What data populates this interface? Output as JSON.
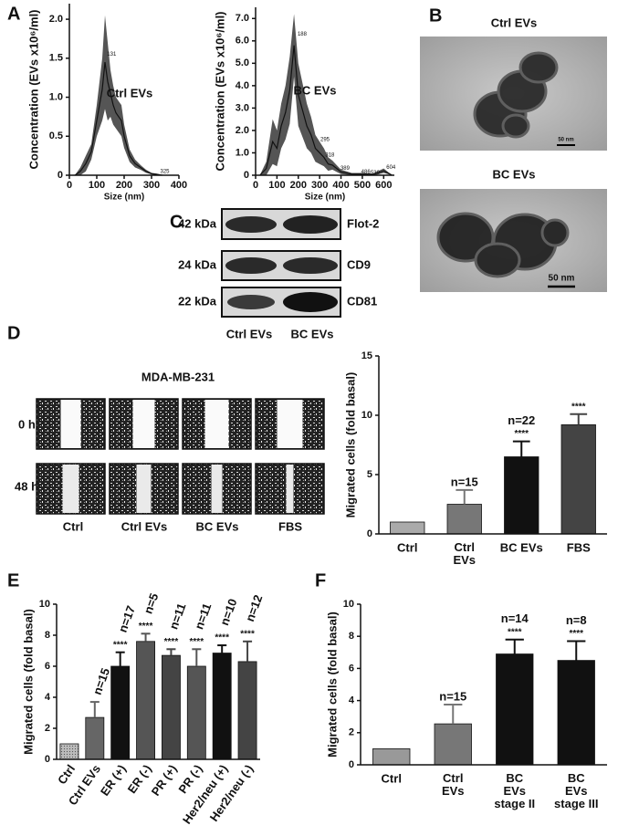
{
  "figure": {
    "panel_labels": [
      "A",
      "B",
      "C",
      "D",
      "E",
      "F"
    ],
    "tem": {
      "titles": [
        "Ctrl EVs",
        "BC EVs"
      ],
      "scale_bars": [
        "50 nm",
        "50 nm"
      ]
    },
    "blot": {
      "sizes": [
        "42 kDa",
        "24 kDa",
        "22 kDa"
      ],
      "markers": [
        "Flot-2",
        "CD9",
        "CD81"
      ],
      "lanes": [
        "Ctrl EVs",
        "BC EVs"
      ]
    },
    "wound": {
      "title": "MDA-MB-231",
      "times": [
        "0 h",
        "48 h"
      ],
      "conditions": [
        "Ctrl",
        "Ctrl EVs",
        "BC EVs",
        "FBS"
      ]
    }
  },
  "chart_data": [
    {
      "type": "line",
      "label": "Ctrl EVs",
      "xlabel": "Size (nm)",
      "ylabel": "Concentration (EVs x10⁶/ml)",
      "x": [
        20,
        40,
        60,
        80,
        100,
        110,
        120,
        130,
        140,
        150,
        160,
        170,
        180,
        190,
        200,
        220,
        240,
        260,
        280,
        300,
        320,
        340
      ],
      "series": [
        {
          "color": "#111111",
          "band_color": "#555555",
          "values": [
            0,
            0.05,
            0.15,
            0.3,
            0.7,
            0.9,
            1.1,
            1.45,
            1.2,
            1.05,
            0.9,
            0.8,
            0.75,
            0.7,
            0.5,
            0.25,
            0.15,
            0.1,
            0.05,
            0.02,
            0.01,
            0
          ],
          "errors": [
            0,
            0.05,
            0.1,
            0.1,
            0.2,
            0.3,
            0.4,
            0.6,
            0.5,
            0.3,
            0.25,
            0.2,
            0.2,
            0.2,
            0.15,
            0.08,
            0.05,
            0.03,
            0.02,
            0.01,
            0.01,
            0
          ]
        }
      ],
      "annotations": [
        {
          "x": 131,
          "y": 1.55,
          "text": "131"
        },
        {
          "x": 325,
          "y": 0.05,
          "text": "325"
        }
      ],
      "xlim": [
        0,
        400
      ],
      "xticks": [
        0,
        100,
        200,
        300,
        400
      ],
      "ylim": [
        0,
        2.2
      ],
      "yticks": [
        0,
        0.5,
        {
          "value": 1,
          "label": "1.0"
        },
        1.5,
        {
          "value": 2,
          "label": "2.0"
        }
      ]
    },
    {
      "type": "line",
      "label": "BC EVs",
      "xlabel": "Size (nm)",
      "ylabel": "Concentration (EVs x10⁶/ml)",
      "x": [
        20,
        50,
        80,
        100,
        120,
        140,
        160,
        180,
        200,
        220,
        240,
        260,
        280,
        300,
        320,
        340,
        360,
        380,
        400,
        450,
        500,
        550,
        600,
        620,
        640
      ],
      "series": [
        {
          "color": "#111111",
          "band_color": "#555555",
          "values": [
            0,
            0.3,
            1.5,
            1.2,
            2.2,
            2.8,
            3.8,
            5.8,
            3.6,
            2.9,
            2.2,
            1.8,
            1.2,
            1.0,
            0.8,
            0.5,
            0.45,
            0.3,
            0.15,
            0.05,
            0.05,
            0.03,
            0.2,
            0.1,
            0
          ],
          "errors": [
            0,
            0.3,
            1.0,
            0.8,
            1.0,
            1.2,
            1.5,
            1.4,
            1.4,
            1.2,
            1.0,
            0.8,
            0.6,
            0.5,
            0.4,
            0.3,
            0.2,
            0.15,
            0.1,
            0.05,
            0.05,
            0.05,
            0.1,
            0.05,
            0
          ]
        }
      ],
      "annotations": [
        {
          "x": 188,
          "y": 6.3,
          "text": "188"
        },
        {
          "x": 295,
          "y": 1.6,
          "text": "295"
        },
        {
          "x": 318,
          "y": 0.9,
          "text": "318"
        },
        {
          "x": 389,
          "y": 0.3,
          "text": "389"
        },
        {
          "x": 486,
          "y": 0.15,
          "text": "486"
        },
        {
          "x": 530,
          "y": 0.1,
          "text": "530"
        },
        {
          "x": 604,
          "y": 0.35,
          "text": "604"
        }
      ],
      "xlim": [
        0,
        650
      ],
      "xticks": [
        0,
        100,
        200,
        300,
        400,
        500,
        600
      ],
      "ylim": [
        0,
        7.5
      ],
      "yticks": [
        0,
        {
          "value": 1,
          "label": "1.0"
        },
        {
          "value": 2,
          "label": "2.0"
        },
        {
          "value": 3,
          "label": "3.0"
        },
        {
          "value": 4,
          "label": "4.0"
        },
        {
          "value": 5,
          "label": "5.0"
        },
        {
          "value": 6,
          "label": "6.0"
        },
        {
          "value": 7,
          "label": "7.0"
        }
      ]
    },
    {
      "type": "bar",
      "ylabel": "Migrated cells (fold basal)",
      "categories": [
        "Ctrl",
        "Ctrl\nEVs",
        "BC EVs",
        "FBS"
      ],
      "values": [
        1,
        2.5,
        6.5,
        9.2
      ],
      "errors": [
        0,
        1.2,
        1.3,
        0.9
      ],
      "colors": [
        "#aaaaaa",
        "#777777",
        "#111111",
        "#444444"
      ],
      "n_labels": [
        null,
        "n=15",
        "n=22",
        null
      ],
      "significance": [
        null,
        null,
        "****",
        "****"
      ],
      "ylim": [
        0,
        15
      ],
      "yticks": [
        0,
        5,
        10,
        15
      ]
    },
    {
      "type": "bar",
      "ylabel": "Migrated cells (fold basal)",
      "categories": [
        "Ctrl",
        "Ctrl EVs",
        "ER (+)",
        "ER (-)",
        "PR (+)",
        "PR (-)",
        "Her2/neu (+)",
        "Her2/neu (-)"
      ],
      "values": [
        1,
        2.7,
        6.0,
        7.6,
        6.7,
        6.0,
        6.85,
        6.3
      ],
      "errors": [
        0,
        1.0,
        0.9,
        0.5,
        0.4,
        1.1,
        0.5,
        1.3
      ],
      "colors": [
        "#b0b0b0",
        "#666666",
        "#111111",
        "#555555",
        "#444444",
        "#555555",
        "#111111",
        "#444444"
      ],
      "n_labels": [
        null,
        "n=15",
        "n=17",
        "n=5",
        "n=11",
        "n=11",
        "n=10",
        "n=12"
      ],
      "significance": [
        null,
        null,
        "****",
        "****",
        "****",
        "****",
        "****",
        "****"
      ],
      "ylim": [
        0,
        10
      ],
      "yticks": [
        0,
        2,
        4,
        6,
        8,
        10
      ]
    },
    {
      "type": "bar",
      "ylabel": "Migrated cells (fold basal)",
      "categories": [
        "Ctrl",
        "Ctrl\nEVs",
        "BC\nEVs\nstage II",
        "BC\nEVs\nstage III"
      ],
      "values": [
        1,
        2.55,
        6.9,
        6.5
      ],
      "errors": [
        0,
        1.2,
        0.9,
        1.2
      ],
      "colors": [
        "#999999",
        "#777777",
        "#111111",
        "#111111"
      ],
      "n_labels": [
        null,
        "n=15",
        "n=14",
        "n=8"
      ],
      "significance": [
        null,
        null,
        "****",
        "****"
      ],
      "ylim": [
        0,
        10
      ],
      "yticks": [
        0,
        2,
        4,
        6,
        8,
        10
      ]
    }
  ]
}
